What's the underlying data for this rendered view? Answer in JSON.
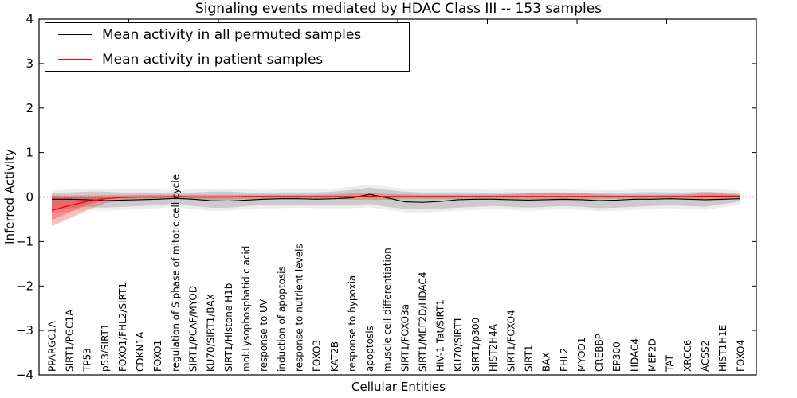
{
  "chart_data": {
    "type": "line",
    "title": "Signaling events mediated by HDAC Class III -- 153 samples",
    "xlabel": "Cellular Entities",
    "ylabel": "Inferred Activity",
    "xlim": [
      0,
      40
    ],
    "ylim": [
      -4,
      4
    ],
    "grid": false,
    "legend_position": "upper left",
    "background": "#ffffff",
    "zero_line": {
      "value": 0,
      "style": "dotted",
      "color": "#000000"
    },
    "xticks_top": [
      5,
      10,
      15,
      20,
      25,
      30,
      35
    ],
    "yticks": [
      {
        "value": 4,
        "label": "4"
      },
      {
        "value": 3,
        "label": "3"
      },
      {
        "value": 2,
        "label": "2"
      },
      {
        "value": 1,
        "label": "1"
      },
      {
        "value": 0,
        "label": "0"
      },
      {
        "value": -1,
        "label": "−1"
      },
      {
        "value": -2,
        "label": "−2"
      },
      {
        "value": -3,
        "label": "−3"
      },
      {
        "value": -4,
        "label": "−4"
      }
    ],
    "categories": [
      "PPARGC1A",
      "SIRT1/PGC1A",
      "TP53",
      "p53/SIRT1",
      "FOXO1/FHL2/SIRT1",
      "CDKN1A",
      "FOXO1",
      "regulation of S phase of mitotic cell cycle",
      "SIRT1/PCAF/MYOD",
      "KU70/SIRT1/BAX",
      "SIRT1/Histone H1b",
      "mol:Lysophosphatidic acid",
      "response to UV",
      "induction of apoptosis",
      "response to nutrient levels",
      "FOXO3",
      "KAT2B",
      "response to hypoxia",
      "apoptosis",
      "muscle cell differentiation",
      "SIRT1/FOXO3a",
      "SIRT1/MEF2D/HDAC4",
      "HIV-1 Tat/SIRT1",
      "KU70/SIRT1",
      "SIRT1/p300",
      "HIST2H4A",
      "SIRT1/FOXO4",
      "SIRT1",
      "BAX",
      "FHL2",
      "MYOD1",
      "CREBBP",
      "EP300",
      "HDAC4",
      "MEF2D",
      "TAT",
      "XRCC6",
      "ACSS2",
      "HIST1H1E",
      "FOXO4"
    ],
    "legend": [
      {
        "label": "Mean activity in all permuted samples",
        "color": "#000000"
      },
      {
        "label": "Mean activity in patient samples",
        "color": "#ff0000"
      }
    ],
    "series": [
      {
        "name": "Mean activity in all permuted samples",
        "color": "#000000",
        "line_width": 1.1,
        "band_color": "#000000",
        "band_opacity": 0.14,
        "outer_band_expand": 0.07,
        "outer_band_opacity": 0.07,
        "values": [
          -0.05,
          -0.05,
          -0.06,
          -0.08,
          -0.07,
          -0.06,
          -0.05,
          -0.03,
          -0.05,
          -0.08,
          -0.09,
          -0.07,
          -0.05,
          -0.04,
          -0.04,
          -0.05,
          -0.04,
          -0.02,
          0.06,
          -0.02,
          -0.11,
          -0.12,
          -0.1,
          -0.06,
          -0.05,
          -0.05,
          -0.06,
          -0.07,
          -0.06,
          -0.05,
          -0.06,
          -0.08,
          -0.07,
          -0.05,
          -0.05,
          -0.04,
          -0.05,
          -0.06,
          -0.05,
          -0.04
        ],
        "band_upper": [
          0.08,
          0.1,
          0.12,
          0.12,
          0.1,
          0.1,
          0.1,
          0.08,
          0.1,
          0.12,
          0.12,
          0.1,
          0.09,
          0.1,
          0.1,
          0.1,
          0.12,
          0.16,
          0.21,
          0.16,
          0.12,
          0.1,
          0.1,
          0.1,
          0.1,
          0.09,
          0.1,
          0.1,
          0.1,
          0.1,
          0.09,
          0.09,
          0.08,
          0.1,
          0.11,
          0.1,
          0.1,
          0.12,
          0.1,
          0.08
        ],
        "band_lower": [
          -0.28,
          -0.25,
          -0.22,
          -0.24,
          -0.22,
          -0.2,
          -0.18,
          -0.15,
          -0.2,
          -0.24,
          -0.24,
          -0.2,
          -0.18,
          -0.18,
          -0.17,
          -0.18,
          -0.18,
          -0.18,
          -0.16,
          -0.22,
          -0.27,
          -0.28,
          -0.26,
          -0.24,
          -0.22,
          -0.2,
          -0.22,
          -0.24,
          -0.22,
          -0.2,
          -0.22,
          -0.25,
          -0.24,
          -0.22,
          -0.2,
          -0.18,
          -0.2,
          -0.22,
          -0.16,
          -0.1
        ]
      },
      {
        "name": "Mean activity in patient samples",
        "color": "#ff0000",
        "line_width": 1.4,
        "band_color": "#ff0000",
        "band_opacity": 0.25,
        "values": [
          -0.3,
          -0.19,
          -0.1,
          -0.04,
          -0.01,
          0.0,
          0.0,
          0.01,
          0.0,
          0.0,
          0.0,
          0.01,
          0.01,
          0.01,
          0.01,
          0.01,
          0.01,
          0.01,
          0.02,
          0.01,
          0.01,
          0.01,
          0.01,
          0.01,
          0.01,
          0.01,
          0.01,
          0.01,
          0.01,
          0.01,
          0.01,
          0.01,
          0.01,
          0.01,
          0.01,
          0.01,
          0.01,
          0.02,
          0.02,
          0.02
        ],
        "band_upper": [
          0.04,
          0.03,
          0.03,
          0.04,
          0.04,
          0.05,
          0.05,
          0.05,
          0.05,
          0.05,
          0.05,
          0.05,
          0.05,
          0.05,
          0.05,
          0.05,
          0.06,
          0.08,
          0.09,
          0.07,
          0.06,
          0.05,
          0.05,
          0.05,
          0.05,
          0.05,
          0.06,
          0.08,
          0.09,
          0.1,
          0.08,
          0.06,
          0.05,
          0.05,
          0.05,
          0.05,
          0.06,
          0.09,
          0.08,
          0.05
        ],
        "band_lower": [
          -0.66,
          -0.48,
          -0.3,
          -0.14,
          -0.07,
          -0.06,
          -0.06,
          -0.05,
          -0.06,
          -0.06,
          -0.06,
          -0.05,
          -0.05,
          -0.05,
          -0.05,
          -0.05,
          -0.05,
          -0.06,
          -0.06,
          -0.06,
          -0.05,
          -0.05,
          -0.05,
          -0.05,
          -0.04,
          -0.04,
          -0.05,
          -0.06,
          -0.07,
          -0.08,
          -0.07,
          -0.05,
          -0.04,
          -0.04,
          -0.04,
          -0.04,
          -0.05,
          -0.08,
          -0.07,
          -0.04
        ],
        "inner_band": {
          "start_index": 0,
          "opacity": 0.28,
          "upper": [
            0.02,
            0.0,
            0.0,
            0.01
          ],
          "lower": [
            -0.52,
            -0.34,
            -0.18,
            -0.06
          ]
        }
      }
    ]
  }
}
